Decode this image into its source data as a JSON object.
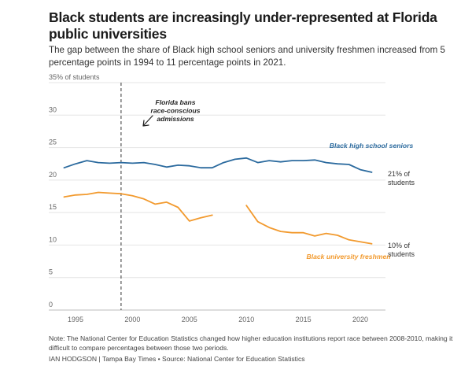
{
  "header": {
    "title": "Black students are increasingly under-represented at Florida public universities",
    "subtitle": "The gap between the share of Black high school seniors and university freshmen increased from 5 percentage points in 1994 to 11 percentage points in 2021."
  },
  "footer": {
    "note": "Note: The National Center for Education Statistics changed how higher education institutions report race between 2008-2010, making it difficult to compare percentages between those two periods.",
    "credit": "IAN HODGSON | Tampa Bay Times • Source: National Center for Education Statistics"
  },
  "colors": {
    "seniors": "#2b6a9e",
    "freshmen": "#f29a2e",
    "grid": "#e4e4e4",
    "axis_text": "#666666",
    "annotation": "#222222"
  },
  "chart_data": {
    "type": "line",
    "title": "Black students are increasingly under-represented at Florida public universities",
    "ylabel": "35% of students",
    "xlim": [
      1993,
      2022
    ],
    "ylim": [
      0,
      35
    ],
    "y_ticks": [
      0,
      5,
      10,
      15,
      20,
      25,
      30,
      35
    ],
    "y_tick_labels": [
      "0",
      "5",
      "10",
      "15",
      "20",
      "25",
      "30",
      "35% of students"
    ],
    "x_ticks": [
      1995,
      2000,
      2005,
      2010,
      2015,
      2020
    ],
    "x_tick_labels": [
      "1995",
      "2000",
      "2005",
      "2010",
      "2015",
      "2020"
    ],
    "grid": true,
    "reference_line": {
      "x": 1999,
      "label_lines": [
        "Florida bans",
        "race-conscious",
        "admissions"
      ]
    },
    "series": [
      {
        "name": "Black high school seniors",
        "key": "seniors",
        "end_label_lines": [
          "21% of",
          "students"
        ],
        "points": [
          [
            1994,
            21.9
          ],
          [
            1995,
            22.5
          ],
          [
            1996,
            23.0
          ],
          [
            1997,
            22.7
          ],
          [
            1998,
            22.6
          ],
          [
            1999,
            22.7
          ],
          [
            2000,
            22.6
          ],
          [
            2001,
            22.7
          ],
          [
            2002,
            22.4
          ],
          [
            2003,
            22.0
          ],
          [
            2004,
            22.3
          ],
          [
            2005,
            22.2
          ],
          [
            2006,
            21.9
          ],
          [
            2007,
            21.9
          ],
          [
            2008,
            22.7
          ],
          [
            2009,
            23.2
          ],
          [
            2010,
            23.4
          ],
          [
            2011,
            22.7
          ],
          [
            2012,
            23.0
          ],
          [
            2013,
            22.8
          ],
          [
            2014,
            23.0
          ],
          [
            2015,
            23.0
          ],
          [
            2016,
            23.1
          ],
          [
            2017,
            22.7
          ],
          [
            2018,
            22.5
          ],
          [
            2019,
            22.4
          ],
          [
            2020,
            21.6
          ],
          [
            2021,
            21.2
          ]
        ]
      },
      {
        "name": "Black university freshmen",
        "key": "freshmen",
        "end_label_lines": [
          "10% of",
          "students"
        ],
        "segments": [
          [
            [
              1994,
              17.4
            ],
            [
              1995,
              17.7
            ],
            [
              1996,
              17.8
            ],
            [
              1997,
              18.1
            ],
            [
              1998,
              18.0
            ],
            [
              1999,
              17.9
            ],
            [
              2000,
              17.6
            ],
            [
              2001,
              17.1
            ],
            [
              2002,
              16.3
            ],
            [
              2003,
              16.6
            ],
            [
              2004,
              15.8
            ],
            [
              2005,
              13.7
            ],
            [
              2006,
              14.2
            ],
            [
              2007,
              14.6
            ]
          ],
          [
            [
              2010,
              16.1
            ],
            [
              2011,
              13.6
            ],
            [
              2012,
              12.7
            ],
            [
              2013,
              12.1
            ],
            [
              2014,
              11.9
            ],
            [
              2015,
              11.9
            ],
            [
              2016,
              11.4
            ],
            [
              2017,
              11.8
            ],
            [
              2018,
              11.5
            ],
            [
              2019,
              10.8
            ],
            [
              2020,
              10.5
            ],
            [
              2021,
              10.2
            ]
          ]
        ]
      }
    ]
  }
}
